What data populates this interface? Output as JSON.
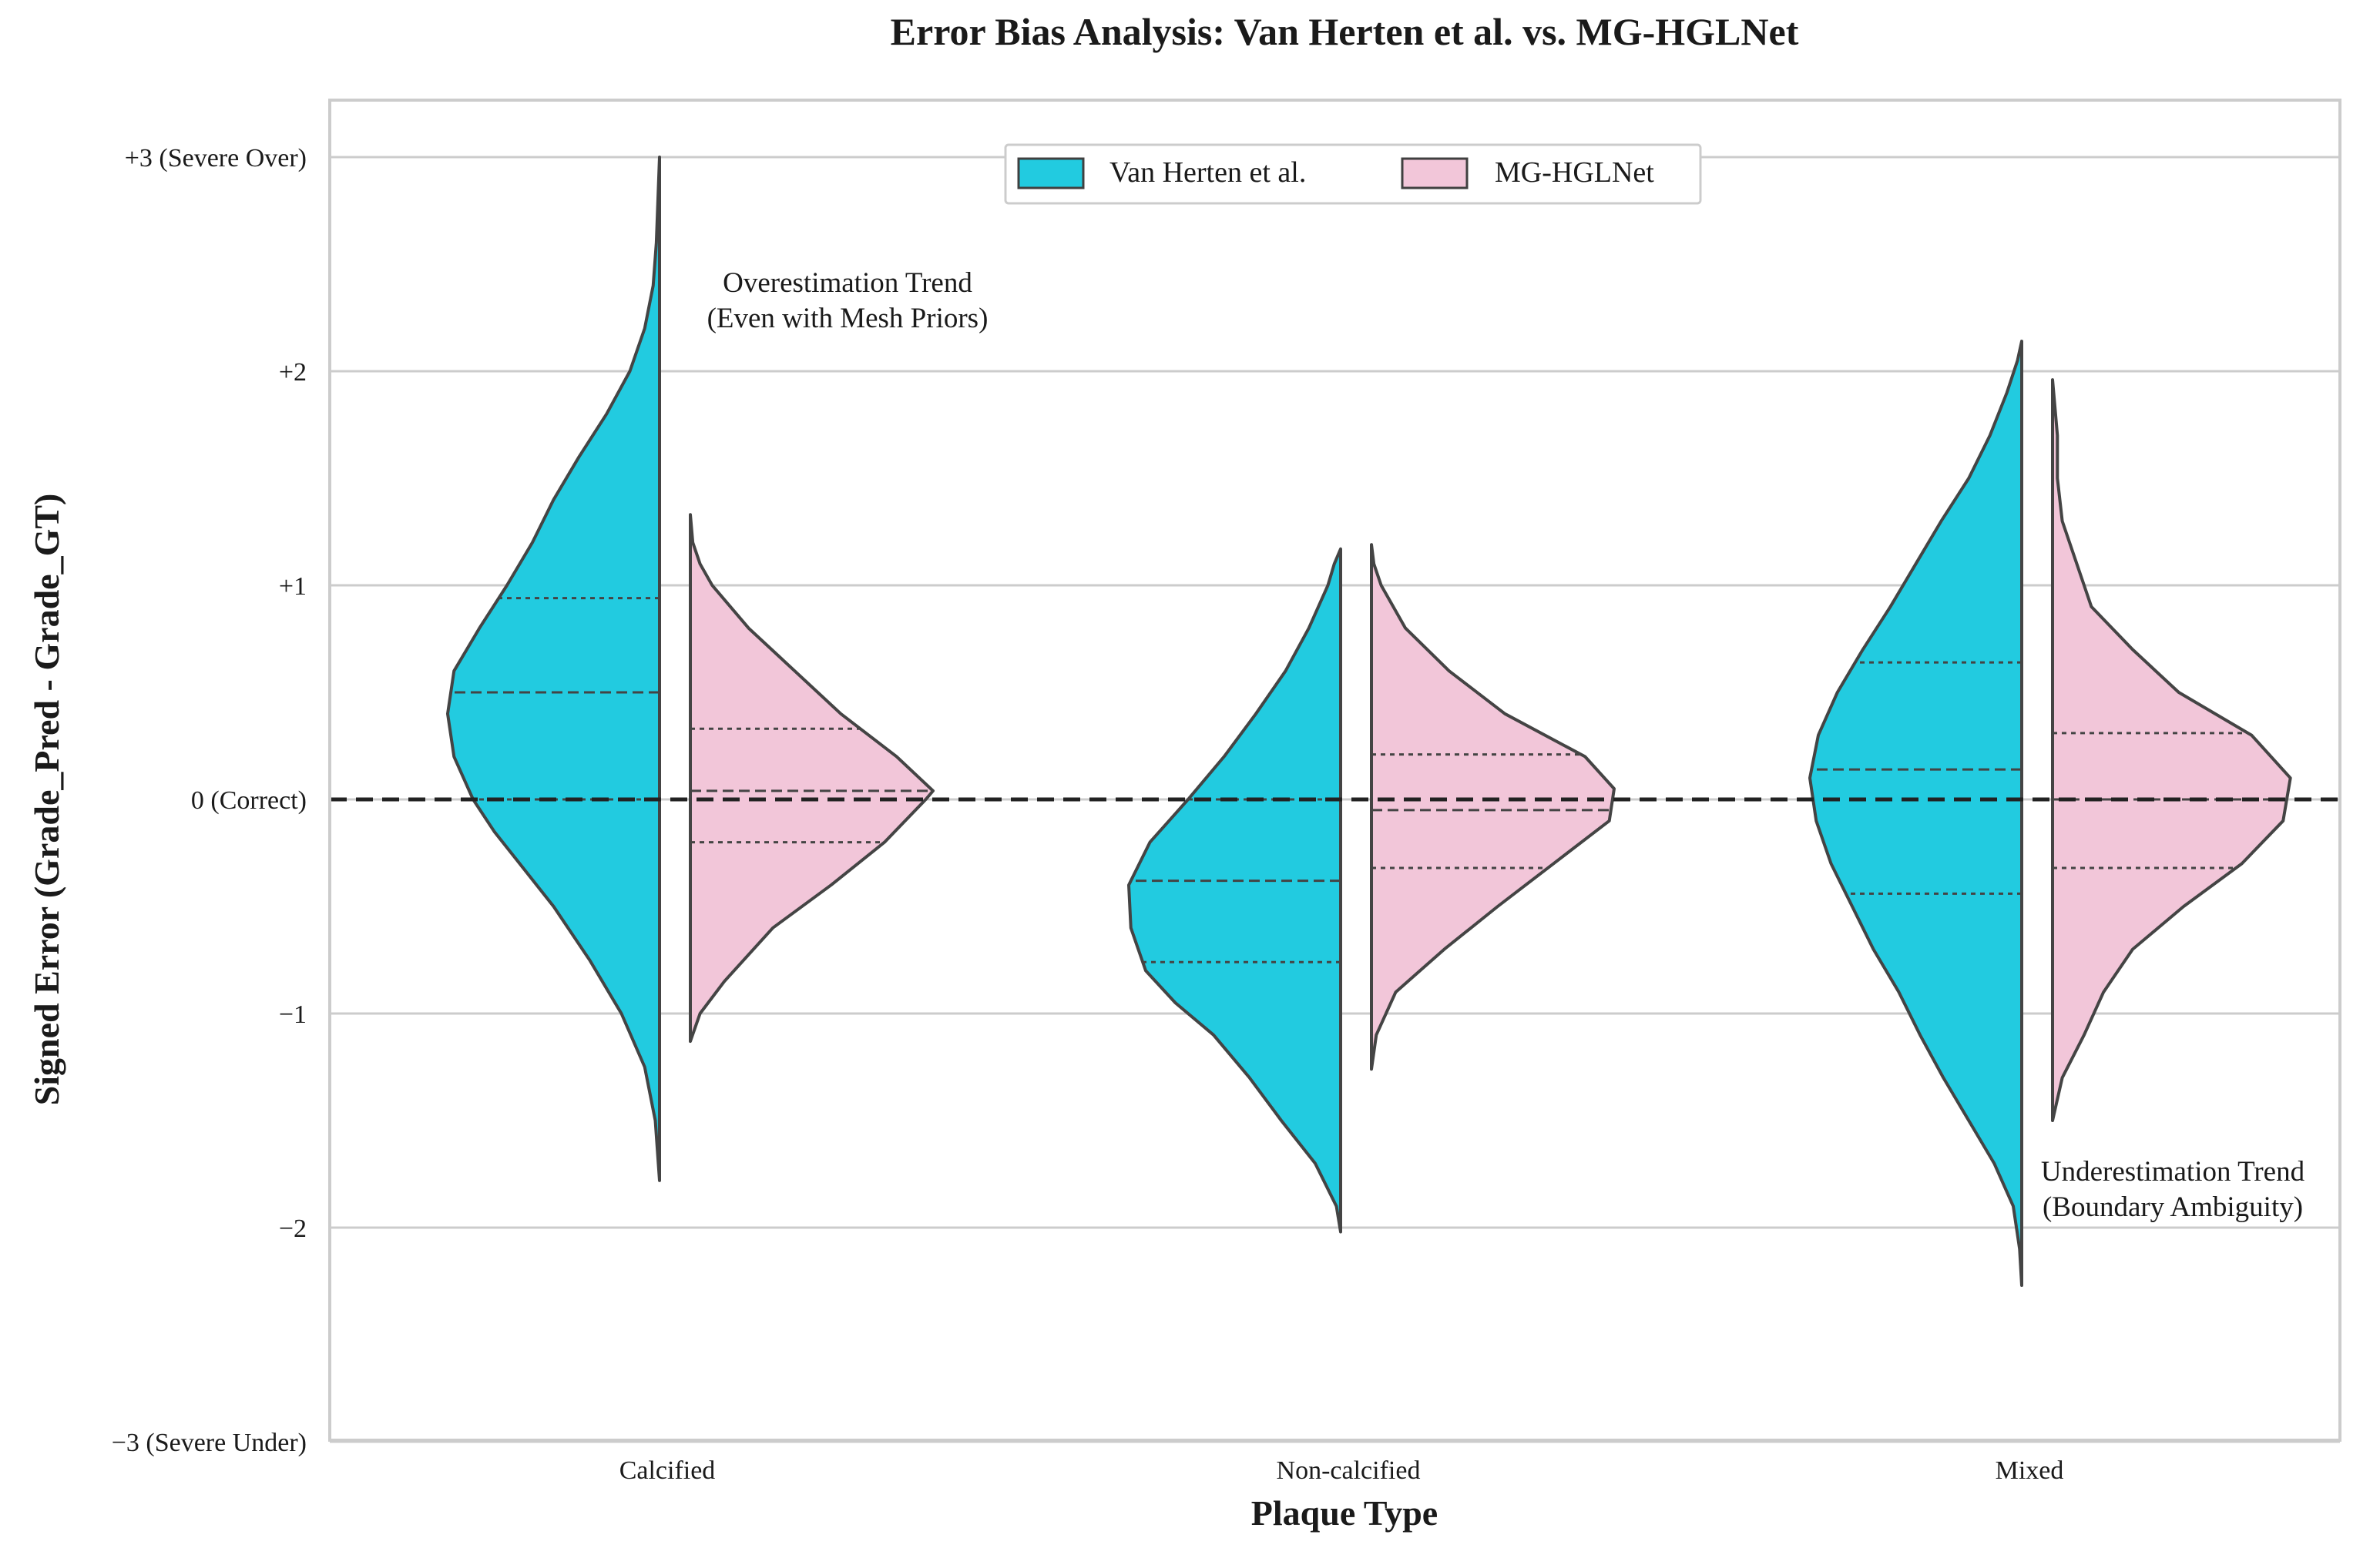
{
  "chart_data": {
    "type": "violin",
    "title": "Error Bias Analysis: Van Herten et al. vs. MG-HGLNet",
    "xlabel": "Plaque Type",
    "ylabel": "Signed Error (Grade_Pred - Grade_GT)",
    "categories": [
      "Calcified",
      "Non-calcified",
      "Mixed"
    ],
    "ylim": [
      -3,
      3
    ],
    "yticks": [
      {
        "value": 3,
        "label": "+3 (Severe Over)"
      },
      {
        "value": 2,
        "label": "+2"
      },
      {
        "value": 1,
        "label": "+1"
      },
      {
        "value": 0,
        "label": "0 (Correct)"
      },
      {
        "value": -1,
        "label": "−1"
      },
      {
        "value": -2,
        "label": "−2"
      },
      {
        "value": -3,
        "label": "−3 (Severe Under)"
      }
    ],
    "grid": "horizontal",
    "reference_line": {
      "value": 0,
      "style": "dashed"
    },
    "legend": {
      "placement": "top-center",
      "ncol": 2
    },
    "series": [
      {
        "name": "Van Herten et al.",
        "color": "#22CBE0",
        "side": "left",
        "violins": [
          {
            "category": "Calcified",
            "min": -1.78,
            "max": 3.0,
            "q1": 0.0,
            "median": 0.5,
            "q3": 0.94,
            "profile": [
              [
                -1.78,
                0.0
              ],
              [
                -1.5,
                0.02
              ],
              [
                -1.25,
                0.07
              ],
              [
                -1.0,
                0.18
              ],
              [
                -0.75,
                0.33
              ],
              [
                -0.5,
                0.5
              ],
              [
                -0.3,
                0.66
              ],
              [
                -0.15,
                0.78
              ],
              [
                0.0,
                0.88
              ],
              [
                0.2,
                0.97
              ],
              [
                0.4,
                1.0
              ],
              [
                0.6,
                0.97
              ],
              [
                0.8,
                0.85
              ],
              [
                1.0,
                0.72
              ],
              [
                1.2,
                0.6
              ],
              [
                1.4,
                0.5
              ],
              [
                1.6,
                0.38
              ],
              [
                1.8,
                0.25
              ],
              [
                2.0,
                0.14
              ],
              [
                2.2,
                0.07
              ],
              [
                2.4,
                0.03
              ],
              [
                2.6,
                0.015
              ],
              [
                3.0,
                0.0
              ]
            ]
          },
          {
            "category": "Non-calcified",
            "min": -2.02,
            "max": 1.17,
            "q1": -0.76,
            "median": -0.38,
            "q3": 0.0,
            "profile": [
              [
                -2.02,
                0.0
              ],
              [
                -1.9,
                0.02
              ],
              [
                -1.7,
                0.12
              ],
              [
                -1.5,
                0.28
              ],
              [
                -1.3,
                0.43
              ],
              [
                -1.1,
                0.6
              ],
              [
                -0.95,
                0.78
              ],
              [
                -0.8,
                0.92
              ],
              [
                -0.6,
                0.99
              ],
              [
                -0.4,
                1.0
              ],
              [
                -0.2,
                0.9
              ],
              [
                0.0,
                0.72
              ],
              [
                0.2,
                0.55
              ],
              [
                0.4,
                0.4
              ],
              [
                0.6,
                0.26
              ],
              [
                0.8,
                0.15
              ],
              [
                1.0,
                0.06
              ],
              [
                1.1,
                0.03
              ],
              [
                1.17,
                0.0
              ]
            ]
          },
          {
            "category": "Mixed",
            "min": -2.27,
            "max": 2.14,
            "q1": -0.44,
            "median": 0.14,
            "q3": 0.64,
            "profile": [
              [
                -2.27,
                0.0
              ],
              [
                -2.1,
                0.01
              ],
              [
                -1.9,
                0.04
              ],
              [
                -1.7,
                0.13
              ],
              [
                -1.5,
                0.25
              ],
              [
                -1.3,
                0.37
              ],
              [
                -1.1,
                0.48
              ],
              [
                -0.9,
                0.58
              ],
              [
                -0.7,
                0.7
              ],
              [
                -0.5,
                0.8
              ],
              [
                -0.3,
                0.9
              ],
              [
                -0.1,
                0.97
              ],
              [
                0.1,
                1.0
              ],
              [
                0.3,
                0.96
              ],
              [
                0.5,
                0.87
              ],
              [
                0.7,
                0.75
              ],
              [
                0.9,
                0.62
              ],
              [
                1.1,
                0.5
              ],
              [
                1.3,
                0.38
              ],
              [
                1.5,
                0.25
              ],
              [
                1.7,
                0.15
              ],
              [
                1.9,
                0.07
              ],
              [
                2.05,
                0.02
              ],
              [
                2.14,
                0.0
              ]
            ]
          }
        ]
      },
      {
        "name": "MG-HGLNet",
        "color": "#F2C6D9",
        "side": "right",
        "violins": [
          {
            "category": "Calcified",
            "min": -1.13,
            "max": 1.33,
            "q1": -0.2,
            "median": 0.04,
            "q3": 0.33,
            "profile": [
              [
                -1.13,
                0.0
              ],
              [
                -1.0,
                0.04
              ],
              [
                -0.85,
                0.14
              ],
              [
                -0.6,
                0.34
              ],
              [
                -0.4,
                0.58
              ],
              [
                -0.2,
                0.8
              ],
              [
                0.0,
                0.97
              ],
              [
                0.04,
                1.0
              ],
              [
                0.2,
                0.85
              ],
              [
                0.4,
                0.62
              ],
              [
                0.6,
                0.43
              ],
              [
                0.8,
                0.24
              ],
              [
                1.0,
                0.09
              ],
              [
                1.1,
                0.04
              ],
              [
                1.2,
                0.01
              ],
              [
                1.33,
                0.0
              ]
            ]
          },
          {
            "category": "Non-calcified",
            "min": -1.26,
            "max": 1.19,
            "q1": -0.32,
            "median": -0.05,
            "q3": 0.21,
            "profile": [
              [
                -1.26,
                0.0
              ],
              [
                -1.1,
                0.02
              ],
              [
                -0.9,
                0.1
              ],
              [
                -0.7,
                0.3
              ],
              [
                -0.5,
                0.52
              ],
              [
                -0.3,
                0.75
              ],
              [
                -0.1,
                0.98
              ],
              [
                0.05,
                1.0
              ],
              [
                0.2,
                0.88
              ],
              [
                0.4,
                0.55
              ],
              [
                0.6,
                0.32
              ],
              [
                0.8,
                0.14
              ],
              [
                1.0,
                0.04
              ],
              [
                1.1,
                0.01
              ],
              [
                1.19,
                0.0
              ]
            ]
          },
          {
            "category": "Mixed",
            "min": -1.5,
            "max": 1.96,
            "q1": -0.32,
            "median": 0.0,
            "q3": 0.31,
            "profile": [
              [
                -1.5,
                0.0
              ],
              [
                -1.3,
                0.04
              ],
              [
                -1.1,
                0.13
              ],
              [
                -0.9,
                0.21
              ],
              [
                -0.7,
                0.33
              ],
              [
                -0.5,
                0.54
              ],
              [
                -0.3,
                0.78
              ],
              [
                -0.1,
                0.95
              ],
              [
                0.1,
                0.98
              ],
              [
                0.3,
                0.82
              ],
              [
                0.5,
                0.52
              ],
              [
                0.7,
                0.33
              ],
              [
                0.9,
                0.16
              ],
              [
                1.1,
                0.1
              ],
              [
                1.3,
                0.04
              ],
              [
                1.5,
                0.02
              ],
              [
                1.7,
                0.02
              ],
              [
                1.96,
                0.0
              ]
            ]
          }
        ]
      }
    ],
    "annotations": [
      {
        "category": "Calcified",
        "y": 2.37,
        "lines": [
          "Overestimation Trend",
          "(Even with Mesh Priors)"
        ]
      },
      {
        "category": "Mixed",
        "y": -1.78,
        "lines": [
          "Underestimation Trend",
          "(Boundary Ambiguity)"
        ]
      }
    ]
  }
}
